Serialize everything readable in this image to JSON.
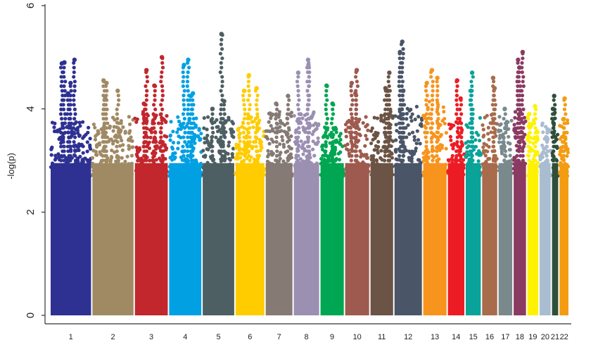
{
  "chart_data": {
    "type": "scatter",
    "title": "",
    "xlabel": "",
    "ylabel": "-log(p)",
    "ylim": [
      0,
      6
    ],
    "yticks": [
      0,
      2,
      4,
      6
    ],
    "grid": false,
    "legend": "none",
    "chromosomes": [
      {
        "label": "1",
        "color": "#2e3192",
        "upper": 3.2,
        "peaks": [
          4.95,
          4.88,
          4.9,
          4.5,
          4.3
        ]
      },
      {
        "label": "2",
        "color": "#a08a64",
        "upper": 3.3,
        "peaks": [
          4.55,
          4.5,
          4.35,
          4.2
        ]
      },
      {
        "label": "3",
        "color": "#c1272d",
        "upper": 3.4,
        "peaks": [
          5.0,
          4.75,
          4.45,
          4.1
        ]
      },
      {
        "label": "4",
        "color": "#00a0e3",
        "upper": 3.3,
        "peaks": [
          4.95,
          4.85,
          4.3,
          4.25
        ]
      },
      {
        "label": "5",
        "color": "#4d5f63",
        "upper": 3.3,
        "peaks": [
          5.45,
          4.15,
          4.0
        ]
      },
      {
        "label": "6",
        "color": "#ffcc00",
        "upper": 3.3,
        "peaks": [
          4.65,
          4.4,
          4.35
        ]
      },
      {
        "label": "7",
        "color": "#857a74",
        "upper": 3.4,
        "peaks": [
          4.25,
          4.1
        ]
      },
      {
        "label": "8",
        "color": "#9b8fb2",
        "upper": 3.4,
        "peaks": [
          4.95,
          4.85,
          4.7
        ]
      },
      {
        "label": "9",
        "color": "#00a651",
        "upper": 3.1,
        "peaks": [
          4.45,
          4.1
        ]
      },
      {
        "label": "10",
        "color": "#9e5a4e",
        "upper": 3.3,
        "peaks": [
          4.75,
          4.5,
          4.3
        ]
      },
      {
        "label": "11",
        "color": "#6b5445",
        "upper": 3.4,
        "peaks": [
          4.7,
          4.4,
          4.35
        ]
      },
      {
        "label": "12",
        "color": "#4a5568",
        "upper": 3.5,
        "peaks": [
          5.3,
          5.1,
          4.35
        ]
      },
      {
        "label": "13",
        "color": "#f7941d",
        "upper": 3.6,
        "peaks": [
          4.75,
          4.6,
          4.5
        ]
      },
      {
        "label": "14",
        "color": "#ed1c24",
        "upper": 3.2,
        "peaks": [
          4.55,
          4.2
        ]
      },
      {
        "label": "15",
        "color": "#0aa39a",
        "upper": 3.3,
        "peaks": [
          4.7,
          4.35
        ]
      },
      {
        "label": "16",
        "color": "#a86b4b",
        "upper": 3.4,
        "peaks": [
          4.6,
          4.4
        ]
      },
      {
        "label": "17",
        "color": "#7a8a8c",
        "upper": 3.3,
        "peaks": [
          4.0
        ]
      },
      {
        "label": "18",
        "color": "#8b3a62",
        "upper": 3.4,
        "peaks": [
          5.1,
          4.95,
          4.8
        ]
      },
      {
        "label": "19",
        "color": "#fff200",
        "upper": 3.3,
        "peaks": [
          4.05,
          3.9
        ]
      },
      {
        "label": "20",
        "color": "#a9bcd0",
        "upper": 3.2,
        "peaks": [
          3.6,
          3.4
        ]
      },
      {
        "label": "21",
        "color": "#2f4f3a",
        "upper": 3.4,
        "peaks": [
          4.25,
          4.0
        ]
      },
      {
        "label": "22",
        "color": "#f39c12",
        "upper": 3.3,
        "peaks": [
          4.2,
          3.8
        ]
      }
    ]
  }
}
